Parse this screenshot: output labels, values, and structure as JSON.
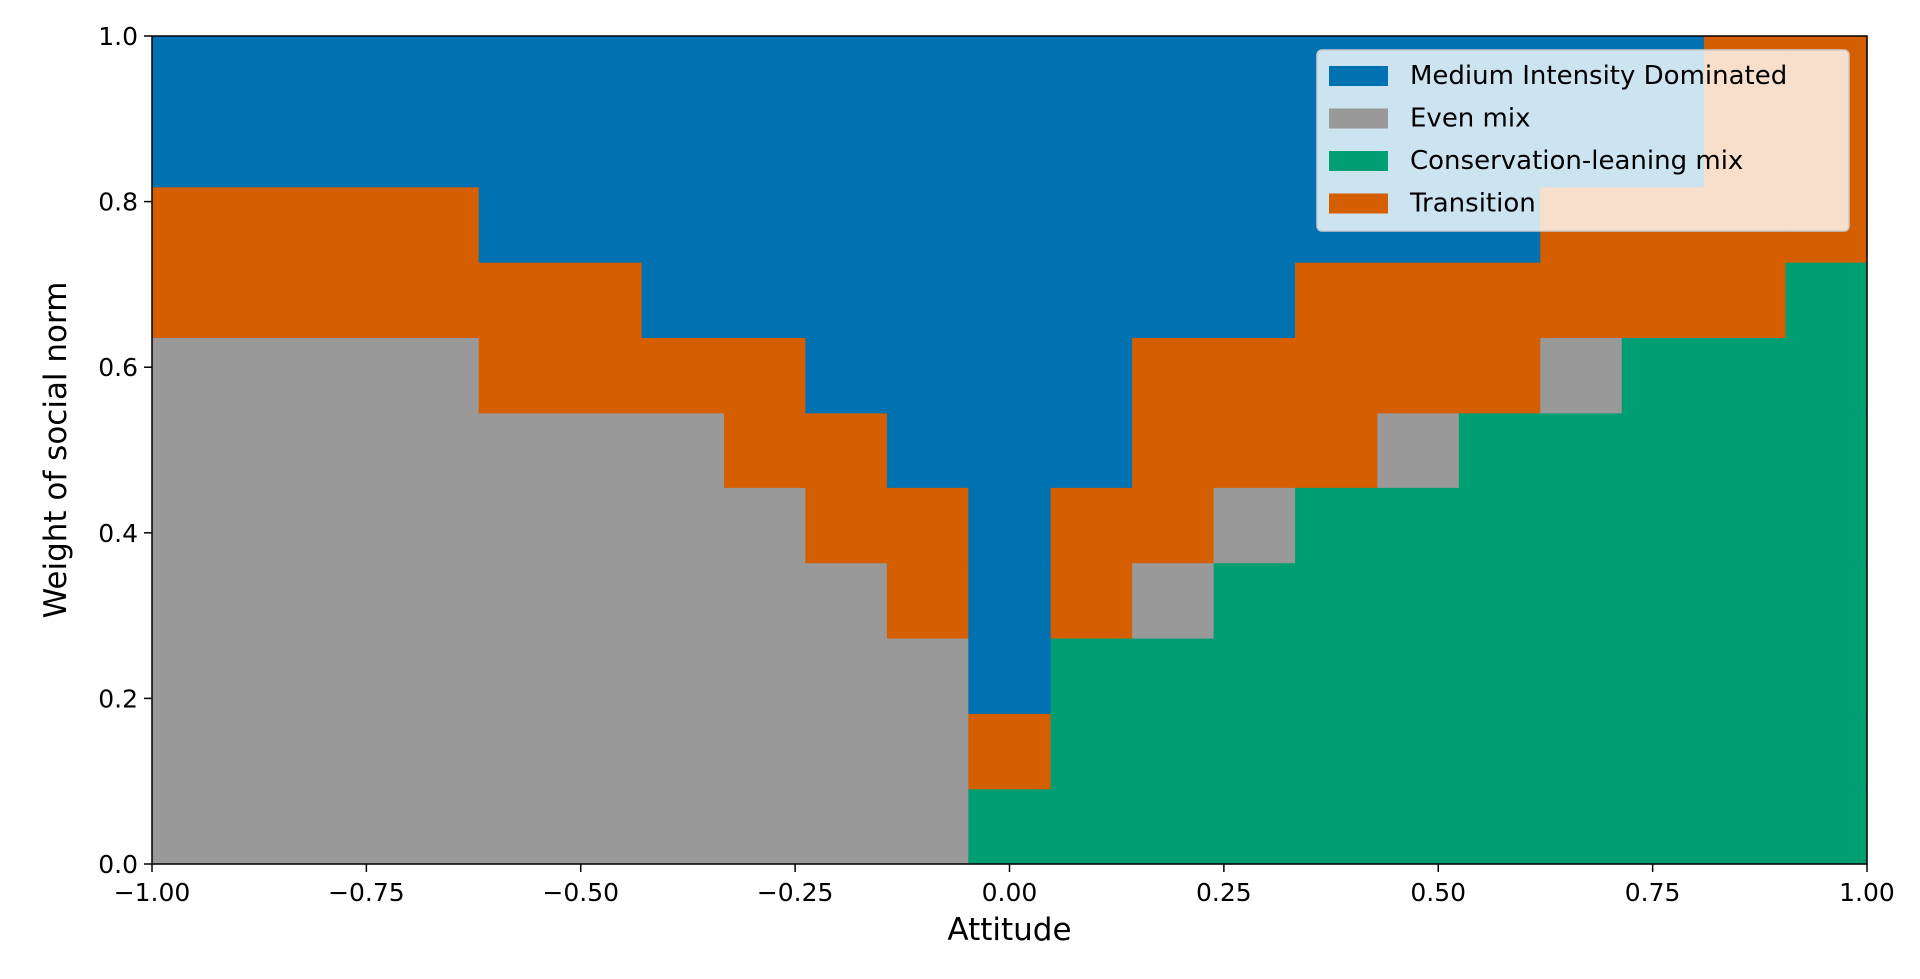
{
  "chart_data": {
    "type": "heatmap",
    "title": "",
    "xlabel": "Attitude",
    "ylabel": "Weight of social norm",
    "xlim": [
      -1.0,
      1.0
    ],
    "ylim": [
      0.0,
      1.0
    ],
    "x_ticks": [
      "−1.00",
      "−0.75",
      "−0.50",
      "−0.25",
      "0.00",
      "0.25",
      "0.50",
      "0.75",
      "1.00"
    ],
    "y_ticks": [
      "0.0",
      "0.2",
      "0.4",
      "0.6",
      "0.8",
      "1.0"
    ],
    "grid": false,
    "legend_position": "top-right",
    "legend": [
      {
        "key": "M",
        "label": "Medium Intensity Dominated",
        "color": "#0072b2"
      },
      {
        "key": "E",
        "label": "Even mix",
        "color": "#999999"
      },
      {
        "key": "C",
        "label": "Conservation-leaning mix",
        "color": "#009e73"
      },
      {
        "key": "T",
        "label": "Transition",
        "color": "#d55e00"
      }
    ],
    "x_edges": [
      -1.0,
      -0.619,
      -0.429,
      -0.333,
      -0.238,
      -0.143,
      -0.048,
      0.048,
      0.143,
      0.238,
      0.333,
      0.429,
      0.524,
      0.619,
      0.714,
      0.81,
      0.905,
      1.0
    ],
    "y_edges": [
      0.0,
      0.091,
      0.182,
      0.273,
      0.364,
      0.455,
      0.545,
      0.636,
      0.727,
      0.818,
      1.0
    ],
    "grid_codes": [
      "EEEEEECCCCCCCCCCC",
      "EEEEEETCCCCCCCCCC",
      "EEEEEEMCCCCCCCCCC",
      "EEEEETMTECCCCCCCC",
      "EEEETTMTTECCCCCCC",
      "EEETTMMMTTTECCCCC",
      "ETTTMMMMTTTTTECCC",
      "TTMMMMMMMMTTTTTTC",
      "TMMMMMMMMMMMMTTTT",
      "MMMMMMMMMMMMMMMTT"
    ]
  }
}
